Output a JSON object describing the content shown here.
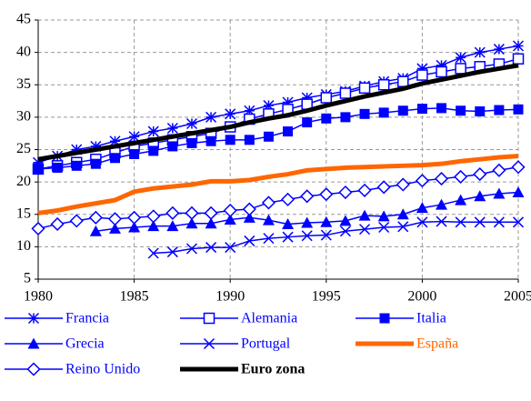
{
  "chart_data": {
    "type": "line",
    "x": [
      1980,
      1981,
      1982,
      1983,
      1984,
      1985,
      1986,
      1987,
      1988,
      1989,
      1990,
      1991,
      1992,
      1993,
      1994,
      1995,
      1996,
      1997,
      1998,
      1999,
      2000,
      2001,
      2002,
      2003,
      2004,
      2005
    ],
    "xlim": [
      1980,
      2005
    ],
    "xticks": [
      1980,
      1985,
      1990,
      1995,
      2000,
      2005
    ],
    "ylim": [
      5,
      45
    ],
    "yticks": [
      5,
      10,
      15,
      20,
      25,
      30,
      35,
      40,
      45
    ],
    "grid": true,
    "series": [
      {
        "name": "Francia",
        "color": "#0000ff",
        "marker": "asterisk",
        "values": [
          23,
          24,
          25,
          25.5,
          26.3,
          27,
          27.8,
          28.3,
          29,
          30,
          30.5,
          31,
          31.8,
          32.3,
          33,
          33.5,
          34,
          34.8,
          35.5,
          36,
          37.5,
          38,
          39.2,
          40,
          40.5,
          41
        ]
      },
      {
        "name": "Alemania",
        "color": "#0000ff",
        "marker": "square-open",
        "values": [
          22,
          22.5,
          23,
          23.5,
          24.5,
          25.5,
          26,
          26.5,
          27,
          27.5,
          28.5,
          29.7,
          30.5,
          31.2,
          32,
          33,
          33.7,
          34.5,
          35,
          35.5,
          36.5,
          37,
          37.5,
          37.8,
          38.2,
          39
        ]
      },
      {
        "name": "Italia",
        "color": "#0000ff",
        "marker": "square",
        "values": [
          22,
          22.2,
          22.5,
          22.8,
          23.7,
          24.3,
          24.8,
          25.5,
          26,
          26.3,
          26.5,
          26.5,
          27,
          27.8,
          29.2,
          29.8,
          30,
          30.5,
          30.7,
          31,
          31.3,
          31.4,
          31,
          30.9,
          31.1,
          31.2
        ]
      },
      {
        "name": "Grecia",
        "color": "#0000ff",
        "marker": "triangle",
        "values": [
          null,
          null,
          null,
          12.4,
          12.8,
          13,
          13.2,
          13.2,
          13.6,
          13.6,
          14.2,
          14.5,
          14.1,
          13.5,
          13.7,
          13.8,
          14,
          14.8,
          14.7,
          15,
          16,
          16.5,
          17.2,
          17.8,
          18.2,
          18.4
        ]
      },
      {
        "name": "Portugal",
        "color": "#0000ff",
        "marker": "x",
        "values": [
          null,
          null,
          null,
          null,
          null,
          null,
          9,
          9.2,
          9.7,
          9.9,
          9.9,
          10.9,
          11.3,
          11.5,
          11.7,
          11.8,
          12.4,
          12.7,
          13,
          13.1,
          13.8,
          13.9,
          13.8,
          13.8,
          13.8,
          13.8
        ]
      },
      {
        "name": "España",
        "color": "#ff6600",
        "marker": "none",
        "values": [
          15.2,
          15.6,
          16.2,
          16.7,
          17.2,
          18.5,
          19,
          19.3,
          19.6,
          20.1,
          20.1,
          20.3,
          20.8,
          21.2,
          21.8,
          22,
          22.2,
          22.3,
          22.4,
          22.5,
          22.6,
          22.8,
          23.2,
          23.5,
          23.8,
          24
        ]
      },
      {
        "name": "Reino Unido",
        "color": "#0000ff",
        "marker": "diamond-open",
        "values": [
          12.8,
          13.5,
          14,
          14.5,
          14.3,
          14.5,
          14.7,
          15.2,
          15.2,
          15.2,
          15.6,
          15.8,
          16.8,
          17.3,
          17.8,
          18.1,
          18.4,
          18.7,
          19.2,
          19.6,
          20.2,
          20.5,
          20.8,
          21.2,
          21.8,
          22.3
        ]
      },
      {
        "name": "Euro zona",
        "color": "#000000",
        "marker": "none",
        "values": [
          23.5,
          24,
          24.5,
          25,
          25.5,
          26,
          26.5,
          27,
          27.5,
          28,
          28.5,
          29.2,
          29.8,
          30.3,
          31,
          31.8,
          32.5,
          33.2,
          33.8,
          34.4,
          35.2,
          35.8,
          36.4,
          37,
          37.5,
          38
        ]
      }
    ]
  }
}
